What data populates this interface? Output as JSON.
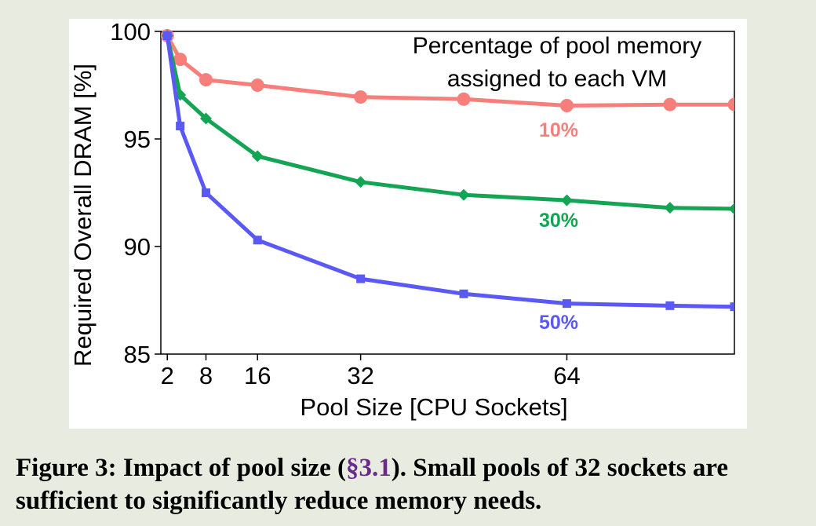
{
  "chart_data": {
    "type": "line",
    "xlabel": "Pool Size [CPU Sockets]",
    "ylabel": "Required Overall DRAM [%]",
    "xlim": [
      1,
      90
    ],
    "ylim": [
      85,
      100
    ],
    "xticks": [
      2,
      8,
      16,
      32,
      64
    ],
    "yticks": [
      85,
      90,
      95,
      100
    ],
    "grid": false,
    "legend_title_lines": [
      "Percentage of pool memory",
      "assigned to each VM"
    ],
    "legend_placement": "top-right",
    "series": [
      {
        "name": "10%",
        "color": "#f77f7b",
        "marker": "circle",
        "points": [
          [
            2,
            99.8
          ],
          [
            4,
            98.7
          ],
          [
            8,
            97.75
          ],
          [
            16,
            97.5
          ],
          [
            32,
            96.95
          ],
          [
            48,
            96.85
          ],
          [
            64,
            96.55
          ],
          [
            80,
            96.6
          ],
          [
            90,
            96.6
          ]
        ]
      },
      {
        "name": "30%",
        "color": "#13a454",
        "marker": "diamond",
        "points": [
          [
            2,
            99.8
          ],
          [
            4,
            97.05
          ],
          [
            8,
            95.95
          ],
          [
            16,
            94.2
          ],
          [
            32,
            93.0
          ],
          [
            48,
            92.4
          ],
          [
            64,
            92.15
          ],
          [
            80,
            91.8
          ],
          [
            90,
            91.75
          ]
        ]
      },
      {
        "name": "50%",
        "color": "#5a59f5",
        "marker": "square",
        "points": [
          [
            2,
            99.8
          ],
          [
            4,
            95.6
          ],
          [
            8,
            92.5
          ],
          [
            16,
            90.3
          ],
          [
            32,
            88.5
          ],
          [
            48,
            87.8
          ],
          [
            64,
            87.35
          ],
          [
            80,
            87.25
          ],
          [
            90,
            87.2
          ]
        ]
      }
    ]
  },
  "caption": {
    "lead": "Figure 3:  Impact of pool size (",
    "ref": "§3.1",
    "tail": ").  Small pools of 32 sockets are sufficient to significantly reduce memory needs."
  }
}
